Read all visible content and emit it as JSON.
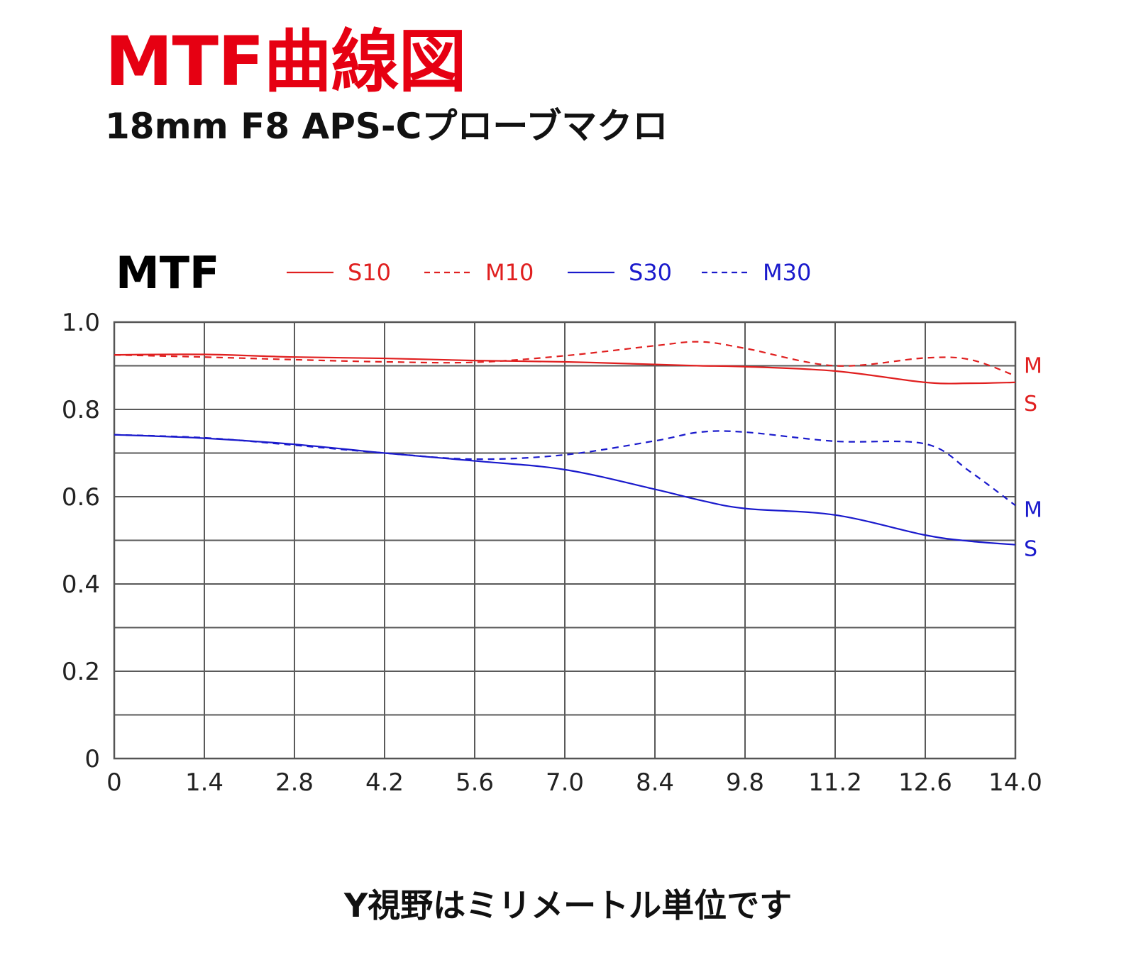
{
  "title": "MTF曲線図",
  "subtitle": "18mm F8 APS-Cプローブマクロ",
  "footer": "Y視野はミリメートル単位です",
  "colors": {
    "red": "#e01f1f",
    "blue": "#1a1acc",
    "title_red": "#e60012",
    "grid": "#5a5a5a"
  },
  "chart_data": {
    "type": "line",
    "title": "MTF",
    "x": [
      0,
      1.4,
      2.8,
      4.2,
      5.6,
      7.0,
      8.4,
      9.1,
      9.8,
      11.2,
      12.6,
      13.3,
      14.0
    ],
    "xticks": [
      "0",
      "1.4",
      "2.8",
      "4.2",
      "5.6",
      "7.0",
      "8.4",
      "9.8",
      "11.2",
      "12.6",
      "14.0"
    ],
    "yticks": [
      "0",
      "0.2",
      "0.4",
      "0.6",
      "0.8",
      "1.0"
    ],
    "xlim": [
      0,
      14.0
    ],
    "ylim": [
      0,
      1.0
    ],
    "grid": true,
    "legend_position": "top",
    "series": [
      {
        "name": "S10",
        "color": "#e01f1f",
        "dashed": false,
        "end_label": "S",
        "values": [
          0.925,
          0.926,
          0.92,
          0.917,
          0.912,
          0.909,
          0.903,
          0.9,
          0.898,
          0.888,
          0.862,
          0.86,
          0.862
        ]
      },
      {
        "name": "M10",
        "color": "#e01f1f",
        "dashed": true,
        "end_label": "M",
        "values": [
          0.925,
          0.92,
          0.914,
          0.909,
          0.908,
          0.923,
          0.946,
          0.955,
          0.94,
          0.9,
          0.918,
          0.914,
          0.877
        ]
      },
      {
        "name": "S30",
        "color": "#1a1acc",
        "dashed": false,
        "end_label": "S",
        "values": [
          0.742,
          0.734,
          0.72,
          0.7,
          0.682,
          0.662,
          0.617,
          0.592,
          0.573,
          0.558,
          0.512,
          0.498,
          0.49
        ]
      },
      {
        "name": "M30",
        "color": "#1a1acc",
        "dashed": true,
        "end_label": "M",
        "values": [
          0.742,
          0.735,
          0.718,
          0.7,
          0.686,
          0.696,
          0.728,
          0.748,
          0.748,
          0.727,
          0.721,
          0.657,
          0.58
        ]
      }
    ]
  }
}
